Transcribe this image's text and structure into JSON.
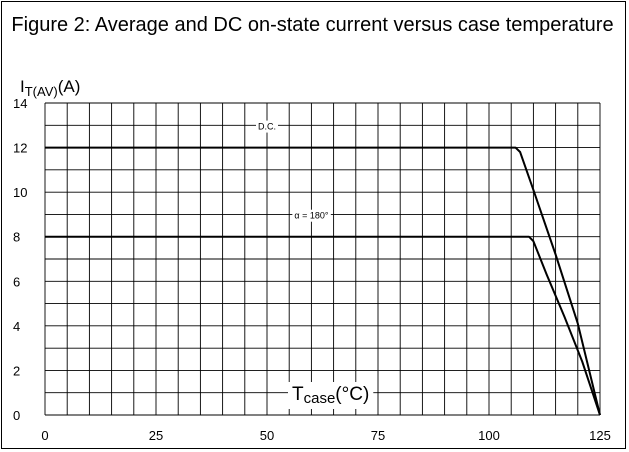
{
  "chart_data": {
    "type": "line",
    "title": "Figure 2: Average and DC on-state current versus case temperature",
    "ylabel_main": "I",
    "ylabel_sub": "T(AV)",
    "ylabel_unit": "(A)",
    "xlabel_main": "T",
    "xlabel_sub": "case",
    "xlabel_unit": "(°C)",
    "xlim": [
      0,
      125
    ],
    "ylim": [
      0,
      14
    ],
    "x_ticks": [
      0,
      25,
      50,
      75,
      100,
      125
    ],
    "y_ticks": [
      0,
      2,
      4,
      6,
      8,
      10,
      12,
      14
    ],
    "grid": true,
    "series": [
      {
        "name": "D.C.",
        "x": [
          0,
          106,
          107,
          110,
          115,
          120,
          125
        ],
        "y": [
          12,
          12,
          11.8,
          10.1,
          7.2,
          4.1,
          0
        ]
      },
      {
        "name": "α = 180°",
        "x": [
          0,
          109,
          110,
          113,
          117,
          121,
          125
        ],
        "y": [
          8,
          8,
          7.8,
          6.3,
          4.4,
          2.4,
          0
        ]
      }
    ]
  }
}
